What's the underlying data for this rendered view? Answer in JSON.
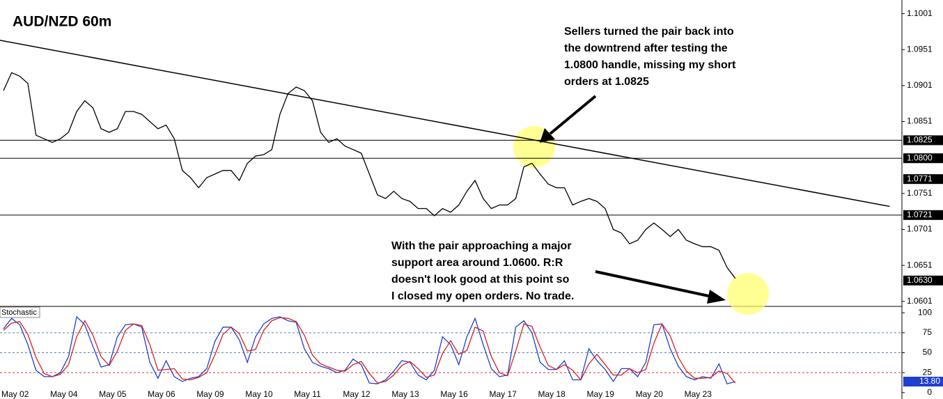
{
  "chart_data": [
    {
      "type": "line",
      "title": "AUD/NZD 60m",
      "categories": [
        "May 02",
        null,
        null,
        null,
        null,
        null,
        "May 04",
        null,
        null,
        null,
        null,
        null,
        "May 05",
        null,
        null,
        null,
        null,
        null,
        "May 06",
        null,
        null,
        null,
        null,
        null,
        "May 09",
        null,
        null,
        null,
        null,
        null,
        "May 10",
        null,
        null,
        null,
        null,
        null,
        "May 11",
        null,
        null,
        null,
        null,
        null,
        "May 12",
        null,
        null,
        null,
        null,
        null,
        "May 13",
        null,
        null,
        null,
        null,
        null,
        "May 16",
        null,
        null,
        null,
        null,
        null,
        "May 17",
        null,
        null,
        null,
        null,
        null,
        "May 18",
        null,
        null,
        null,
        null,
        null,
        "May 19",
        null,
        null,
        null,
        null,
        null,
        "May 20",
        null,
        null,
        null,
        null,
        null,
        "May 23",
        null,
        null,
        null,
        null,
        null,
        null
      ],
      "series": [
        {
          "color": "#000000",
          "values": [
            1.0894,
            1.0919,
            1.0914,
            1.0904,
            1.0832,
            1.0827,
            1.0822,
            1.0827,
            1.0836,
            1.0865,
            1.088,
            1.087,
            1.0841,
            1.0836,
            1.0841,
            1.0865,
            1.0865,
            1.0861,
            1.0851,
            1.0841,
            1.0846,
            1.0827,
            1.0783,
            1.0773,
            1.0759,
            1.0773,
            1.0778,
            1.0783,
            1.0783,
            1.0769,
            1.0793,
            1.0803,
            1.0805,
            1.0812,
            1.0861,
            1.089,
            1.0899,
            1.0894,
            1.088,
            1.0836,
            1.0822,
            1.0827,
            1.0817,
            1.0812,
            1.0807,
            1.0778,
            1.0749,
            1.0744,
            1.0754,
            1.0744,
            1.074,
            1.073,
            1.073,
            1.072,
            1.073,
            1.0725,
            1.0735,
            1.0754,
            1.0769,
            1.0744,
            1.073,
            1.0735,
            1.0735,
            1.0744,
            1.0788,
            1.0793,
            1.0778,
            1.0764,
            1.0759,
            1.0759,
            1.0735,
            1.074,
            1.0744,
            1.074,
            1.073,
            1.0701,
            1.0696,
            1.0681,
            1.0686,
            1.0701,
            1.071,
            1.0701,
            1.0691,
            1.0701,
            1.0686,
            1.0681,
            1.0677,
            1.0677,
            1.0672,
            1.0648,
            1.0633
          ]
        }
      ],
      "xlim": [
        -0.43,
        110.5
      ],
      "ylim": [
        1.0594,
        1.102
      ],
      "yticks": [
        1.1001,
        1.0951,
        1.0901,
        1.0851,
        1.0751,
        1.0701,
        1.0651,
        1.0601
      ],
      "levels": [
        1.0825,
        {
          "value": 1.08,
          "label": "1.0800"
        },
        1.0721
      ],
      "markers": [
        1.0771,
        {
          "value": 1.063,
          "label": "1.0630"
        }
      ],
      "trendline": {
        "x": [
          -0.43,
          109
        ],
        "values": [
          1.0964,
          1.0733
        ]
      },
      "annotations": [
        {
          "lines": [
            "Sellers turned the pair back into",
            "the downtrend after testing the",
            "1.0800 handle, missing my short",
            "orders at 1.0825"
          ]
        },
        {
          "lines": [
            "With the pair approaching a major",
            "support area around 1.0600. R:R",
            "doesn't look good at this point so",
            "I closed my open orders. No trade."
          ]
        }
      ]
    },
    {
      "type": "line",
      "title": "Stochastic",
      "series": [
        {
          "color": "#1f3fcf",
          "values": [
            80,
            93,
            85,
            60,
            28,
            20,
            20,
            25,
            45,
            95,
            85,
            58,
            32,
            35,
            70,
            85,
            86,
            82,
            38,
            18,
            40,
            20,
            14,
            18,
            20,
            30,
            64,
            82,
            82,
            66,
            38,
            70,
            86,
            93,
            95,
            90,
            88,
            55,
            38,
            33,
            30,
            25,
            28,
            42,
            35,
            12,
            11,
            16,
            27,
            40,
            38,
            22,
            16,
            28,
            70,
            60,
            35,
            70,
            93,
            60,
            30,
            20,
            22,
            82,
            90,
            75,
            38,
            29,
            29,
            40,
            16,
            16,
            55,
            40,
            29,
            14,
            30,
            30,
            20,
            38,
            85,
            86,
            55,
            33,
            20,
            16,
            20,
            18,
            36,
            11,
            13.8
          ]
        },
        {
          "color": "#d62020",
          "values": [
            78,
            87,
            89,
            73,
            44,
            24,
            20,
            23,
            35,
            70,
            90,
            72,
            45,
            34,
            52,
            78,
            86,
            84,
            60,
            28,
            29,
            30,
            17,
            16,
            19,
            25,
            47,
            73,
            82,
            74,
            52,
            54,
            78,
            90,
            94,
            93,
            89,
            72,
            47,
            36,
            32,
            28,
            27,
            35,
            39,
            24,
            12,
            14,
            22,
            34,
            39,
            30,
            19,
            22,
            49,
            65,
            48,
            53,
            82,
            77,
            45,
            25,
            21,
            52,
            86,
            83,
            57,
            34,
            29,
            35,
            28,
            16,
            36,
            48,
            35,
            22,
            22,
            30,
            25,
            29,
            62,
            86,
            71,
            44,
            27,
            18,
            18,
            19,
            27,
            24,
            12
          ]
        }
      ],
      "ylim": [
        -8,
        108
      ],
      "yticks": [
        100,
        75,
        50,
        25,
        0
      ],
      "levels": [
        75,
        50,
        25
      ],
      "level_colors": [
        "#5a7fb0",
        "#5a7fb0",
        "#d33333"
      ],
      "markers": [
        {
          "value": 13.8,
          "label": "13.80"
        }
      ]
    }
  ]
}
